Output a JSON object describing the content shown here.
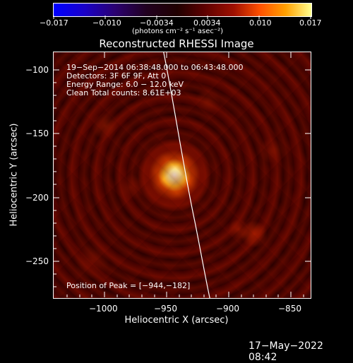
{
  "colorbar": {
    "ticks": [
      "−0.017",
      "−0.010",
      "−0.0034",
      "0.0034",
      "0.010",
      "0.017"
    ],
    "unit": "(photons cm⁻² s⁻¹ asec⁻²)"
  },
  "title": "Reconstructed RHESSI Image",
  "info": {
    "line1": "19−Sep−2014 06:38:48.000 to 06:43:48.000",
    "line2": "Detectors: 3F 6F 9F, Att 0",
    "line3": "Energy Range: 6.0 − 12.0 keV",
    "line4": "Clean     Total counts: 8.61E+03"
  },
  "peak": "Position of Peak = [−944,−182]",
  "axes": {
    "xlabel": "Heliocentric X (arcsec)",
    "ylabel": "Heliocentric Y (arcsec)",
    "xticks": [
      "−1000",
      "−950",
      "−900",
      "−850"
    ],
    "yticks": [
      "−100",
      "−150",
      "−200",
      "−250"
    ]
  },
  "footer": "17−May−2022 08:42",
  "colors": {
    "plot_bg": "#2a0000",
    "source": "#ffffe0",
    "limb": "#ffffff"
  }
}
